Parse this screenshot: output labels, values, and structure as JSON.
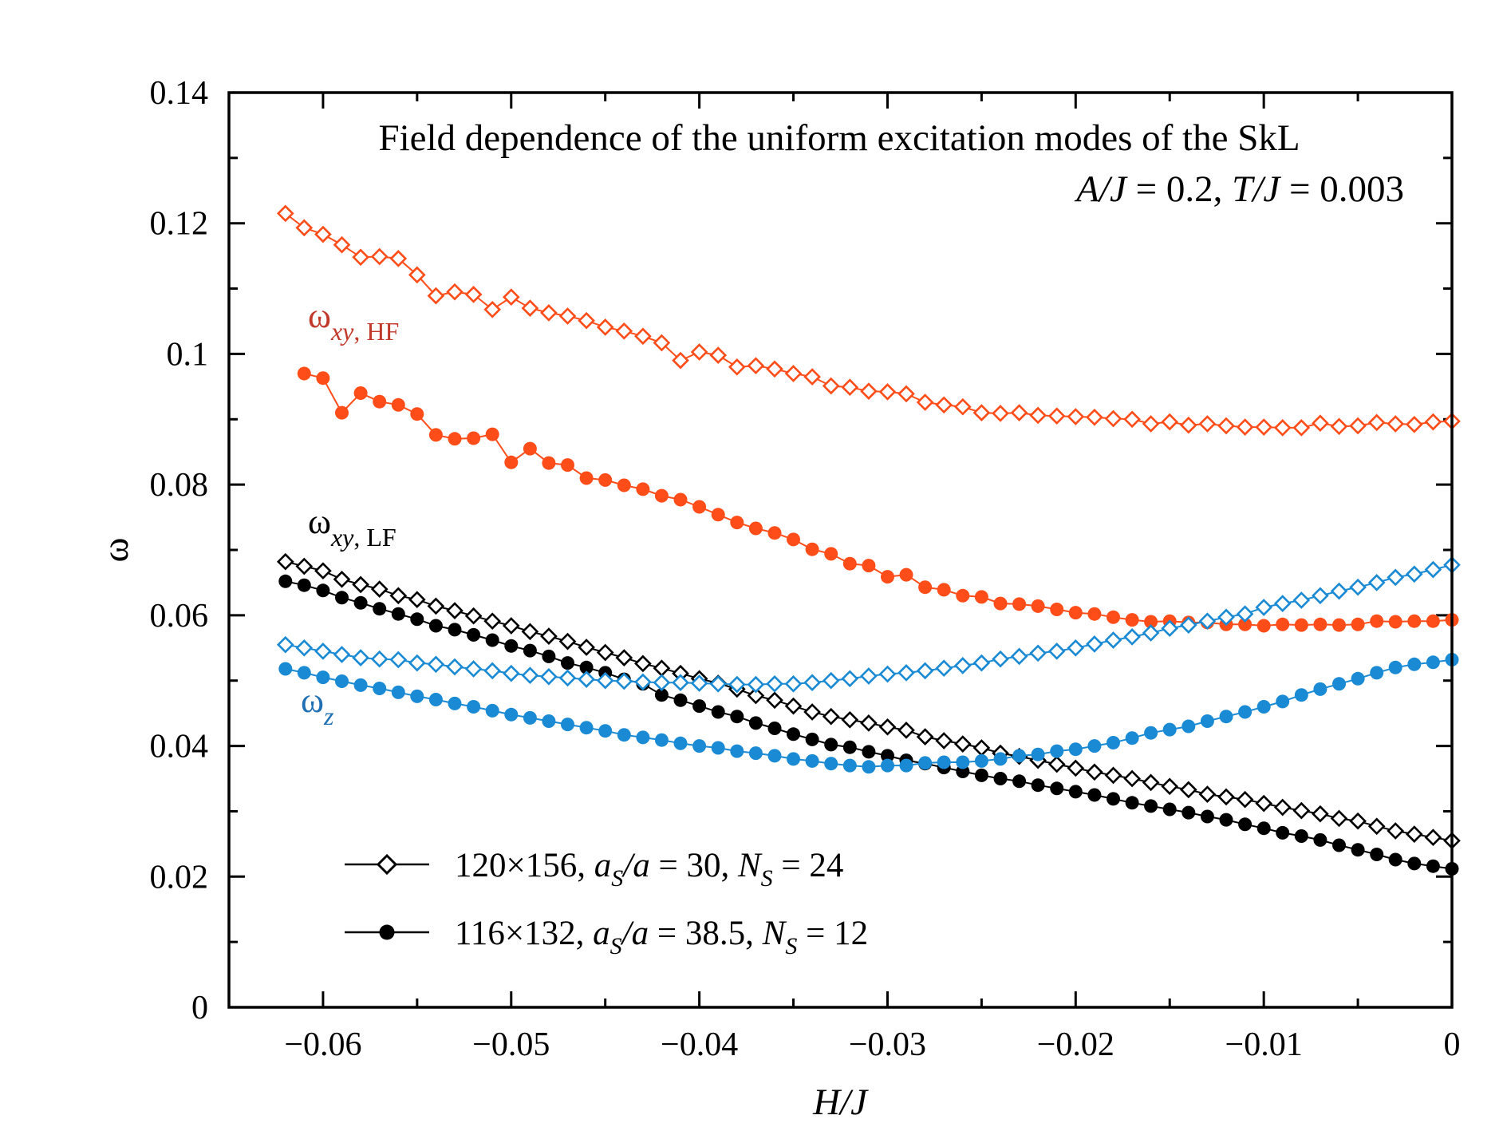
{
  "chart_data": {
    "type": "line",
    "title": "Field dependence of the uniform excitation modes of the SkL",
    "subtitle": {
      "a_var": "A/J",
      "a_val": " = 0.2, ",
      "t_var": "T/J",
      "t_val": "  = 0.003"
    },
    "xlabel": "H/J",
    "ylabel": "ω",
    "xlim": [
      -0.065,
      0
    ],
    "ylim": [
      0,
      0.14
    ],
    "x_ticks": [
      -0.06,
      -0.05,
      -0.04,
      -0.03,
      -0.02,
      -0.01,
      0
    ],
    "x_tick_labels": [
      "−0.06",
      "−0.05",
      "−0.04",
      "−0.03",
      "−0.02",
      "−0.01",
      "0"
    ],
    "y_ticks": [
      0,
      0.02,
      0.04,
      0.06,
      0.08,
      0.1,
      0.12,
      0.14
    ],
    "y_tick_labels": [
      "0",
      "0.02",
      "0.04",
      "0.06",
      "0.08",
      "0.1",
      "0.12",
      "0.14"
    ],
    "colors": {
      "hf": "#ff4d1a",
      "lf": "#000000",
      "z": "#1a8ad4",
      "label_hf": "#c0392b",
      "label_z": "#1f6fb5"
    },
    "series_labels": {
      "hf": {
        "main": "ω",
        "sub_italic": "xy",
        "sub_rest": ", HF"
      },
      "lf": {
        "main": "ω",
        "sub_italic": "xy",
        "sub_rest": ", LF"
      },
      "z": {
        "main": "ω",
        "sub_italic": "z",
        "sub_rest": ""
      }
    },
    "legend": [
      {
        "marker": "open-diamond",
        "text_a": "120×156, ",
        "a_s": "a",
        "a_s_sub": "S",
        "a_over": "/a",
        "text_b": "  = 30, ",
        "n": "N",
        "n_sub": "S",
        "text_c": " = 24"
      },
      {
        "marker": "filled-circle",
        "text_a": "116×132, ",
        "a_s": "a",
        "a_s_sub": "S",
        "a_over": "/a",
        "text_b": "  = 38.5, ",
        "n": "N",
        "n_sub": "S",
        "text_c": " = 12"
      }
    ],
    "series": [
      {
        "name": "ω_xy,HF open diamond (120×156)",
        "color_key": "hf",
        "marker": "open-diamond",
        "x": [
          -0.062,
          -0.061,
          -0.06,
          -0.059,
          -0.058,
          -0.057,
          -0.056,
          -0.055,
          -0.054,
          -0.053,
          -0.052,
          -0.051,
          -0.05,
          -0.049,
          -0.048,
          -0.047,
          -0.046,
          -0.045,
          -0.044,
          -0.043,
          -0.042,
          -0.041,
          -0.04,
          -0.039,
          -0.038,
          -0.037,
          -0.036,
          -0.035,
          -0.034,
          -0.033,
          -0.032,
          -0.031,
          -0.03,
          -0.029,
          -0.028,
          -0.027,
          -0.026,
          -0.025,
          -0.024,
          -0.023,
          -0.022,
          -0.021,
          -0.02,
          -0.019,
          -0.018,
          -0.017,
          -0.016,
          -0.015,
          -0.014,
          -0.013,
          -0.012,
          -0.011,
          -0.01,
          -0.009,
          -0.008,
          -0.007,
          -0.006,
          -0.005,
          -0.004,
          -0.003,
          -0.002,
          -0.001,
          0
        ],
        "y": [
          0.1215,
          0.1193,
          0.1183,
          0.1167,
          0.1148,
          0.1149,
          0.1146,
          0.1121,
          0.1089,
          0.1095,
          0.1091,
          0.1068,
          0.1087,
          0.107,
          0.1063,
          0.1058,
          0.1051,
          0.1041,
          0.1035,
          0.1027,
          0.1017,
          0.099,
          0.1003,
          0.0998,
          0.098,
          0.0982,
          0.0977,
          0.097,
          0.0965,
          0.0951,
          0.0949,
          0.0943,
          0.0942,
          0.0939,
          0.0926,
          0.0922,
          0.0919,
          0.091,
          0.0909,
          0.091,
          0.0906,
          0.0905,
          0.0904,
          0.0903,
          0.0901,
          0.09,
          0.0893,
          0.0896,
          0.0891,
          0.0893,
          0.089,
          0.0888,
          0.0888,
          0.0887,
          0.0887,
          0.0894,
          0.0889,
          0.089,
          0.0895,
          0.0893,
          0.0892,
          0.0896,
          0.0897
        ]
      },
      {
        "name": "ω_xy,HF filled circle (116×132)",
        "color_key": "hf",
        "marker": "filled-circle",
        "x": [
          -0.061,
          -0.06,
          -0.059,
          -0.058,
          -0.057,
          -0.056,
          -0.055,
          -0.054,
          -0.053,
          -0.052,
          -0.051,
          -0.05,
          -0.049,
          -0.048,
          -0.047,
          -0.046,
          -0.045,
          -0.044,
          -0.043,
          -0.042,
          -0.041,
          -0.04,
          -0.039,
          -0.038,
          -0.037,
          -0.036,
          -0.035,
          -0.034,
          -0.033,
          -0.032,
          -0.031,
          -0.03,
          -0.029,
          -0.028,
          -0.027,
          -0.026,
          -0.025,
          -0.024,
          -0.023,
          -0.022,
          -0.021,
          -0.02,
          -0.019,
          -0.018,
          -0.017,
          -0.016,
          -0.015,
          -0.014,
          -0.013,
          -0.012,
          -0.011,
          -0.01,
          -0.009,
          -0.008,
          -0.007,
          -0.006,
          -0.005,
          -0.004,
          -0.003,
          -0.002,
          -0.001,
          0
        ],
        "y": [
          0.097,
          0.0963,
          0.091,
          0.094,
          0.0927,
          0.0922,
          0.0908,
          0.0876,
          0.087,
          0.0871,
          0.0877,
          0.0834,
          0.0855,
          0.0833,
          0.083,
          0.081,
          0.0807,
          0.0799,
          0.0793,
          0.0783,
          0.0777,
          0.0766,
          0.0754,
          0.0742,
          0.0733,
          0.0726,
          0.0716,
          0.0701,
          0.0694,
          0.0679,
          0.0676,
          0.0659,
          0.0662,
          0.0643,
          0.0639,
          0.063,
          0.0628,
          0.0618,
          0.0617,
          0.0614,
          0.0609,
          0.0604,
          0.0602,
          0.0597,
          0.0593,
          0.059,
          0.0591,
          0.0589,
          0.0589,
          0.0586,
          0.0586,
          0.0584,
          0.0586,
          0.0585,
          0.0586,
          0.0585,
          0.0586,
          0.0591,
          0.059,
          0.0591,
          0.0591,
          0.0593
        ]
      },
      {
        "name": "ω_xy,LF open diamond (120×156)",
        "color_key": "lf",
        "marker": "open-diamond",
        "x": [
          -0.062,
          -0.061,
          -0.06,
          -0.059,
          -0.058,
          -0.057,
          -0.056,
          -0.055,
          -0.054,
          -0.053,
          -0.052,
          -0.051,
          -0.05,
          -0.049,
          -0.048,
          -0.047,
          -0.046,
          -0.045,
          -0.044,
          -0.043,
          -0.042,
          -0.041,
          -0.04,
          -0.039,
          -0.038,
          -0.037,
          -0.036,
          -0.035,
          -0.034,
          -0.033,
          -0.032,
          -0.031,
          -0.03,
          -0.029,
          -0.028,
          -0.027,
          -0.026,
          -0.025,
          -0.024,
          -0.023,
          -0.022,
          -0.021,
          -0.02,
          -0.019,
          -0.018,
          -0.017,
          -0.016,
          -0.015,
          -0.014,
          -0.013,
          -0.012,
          -0.011,
          -0.01,
          -0.009,
          -0.008,
          -0.007,
          -0.006,
          -0.005,
          -0.004,
          -0.003,
          -0.002,
          -0.001,
          0
        ],
        "y": [
          0.0682,
          0.0675,
          0.0668,
          0.0655,
          0.0647,
          0.064,
          0.063,
          0.0624,
          0.0614,
          0.0607,
          0.0599,
          0.0591,
          0.0584,
          0.0575,
          0.0568,
          0.056,
          0.0551,
          0.0543,
          0.0535,
          0.0526,
          0.0519,
          0.0511,
          0.0503,
          0.0496,
          0.0487,
          0.0477,
          0.047,
          0.0461,
          0.0452,
          0.0445,
          0.044,
          0.0435,
          0.0429,
          0.0424,
          0.0414,
          0.0408,
          0.0403,
          0.0397,
          0.0389,
          0.0384,
          0.0378,
          0.0372,
          0.0366,
          0.036,
          0.0355,
          0.035,
          0.0344,
          0.0338,
          0.0333,
          0.0326,
          0.0322,
          0.0318,
          0.0312,
          0.0306,
          0.0301,
          0.0296,
          0.0289,
          0.0285,
          0.0277,
          0.027,
          0.0265,
          0.026,
          0.0255
        ]
      },
      {
        "name": "ω_xy,LF filled circle (116×132)",
        "color_key": "lf",
        "marker": "filled-circle",
        "x": [
          -0.062,
          -0.061,
          -0.06,
          -0.059,
          -0.058,
          -0.057,
          -0.056,
          -0.055,
          -0.054,
          -0.053,
          -0.052,
          -0.051,
          -0.05,
          -0.049,
          -0.048,
          -0.047,
          -0.046,
          -0.045,
          -0.044,
          -0.043,
          -0.042,
          -0.041,
          -0.04,
          -0.039,
          -0.038,
          -0.037,
          -0.036,
          -0.035,
          -0.034,
          -0.033,
          -0.032,
          -0.031,
          -0.03,
          -0.029,
          -0.028,
          -0.027,
          -0.026,
          -0.025,
          -0.024,
          -0.023,
          -0.022,
          -0.021,
          -0.02,
          -0.019,
          -0.018,
          -0.017,
          -0.016,
          -0.015,
          -0.014,
          -0.013,
          -0.012,
          -0.011,
          -0.01,
          -0.009,
          -0.008,
          -0.007,
          -0.006,
          -0.005,
          -0.004,
          -0.003,
          -0.002,
          -0.001,
          0
        ],
        "y": [
          0.0652,
          0.0646,
          0.0638,
          0.0627,
          0.0619,
          0.061,
          0.0602,
          0.0594,
          0.0584,
          0.0578,
          0.057,
          0.0562,
          0.0553,
          0.0546,
          0.0537,
          0.0527,
          0.052,
          0.0512,
          0.0502,
          0.0495,
          0.0478,
          0.047,
          0.0461,
          0.0452,
          0.0445,
          0.0435,
          0.0427,
          0.0418,
          0.041,
          0.0402,
          0.0398,
          0.0391,
          0.0385,
          0.0378,
          0.0373,
          0.0367,
          0.0361,
          0.0355,
          0.035,
          0.0346,
          0.034,
          0.0335,
          0.033,
          0.0325,
          0.0319,
          0.0313,
          0.0308,
          0.0303,
          0.0298,
          0.0292,
          0.0287,
          0.028,
          0.0274,
          0.0267,
          0.0262,
          0.0256,
          0.0248,
          0.0241,
          0.0234,
          0.0226,
          0.022,
          0.0216,
          0.0212
        ]
      },
      {
        "name": "ω_z open diamond (120×156)",
        "color_key": "z",
        "marker": "open-diamond",
        "x": [
          -0.062,
          -0.061,
          -0.06,
          -0.059,
          -0.058,
          -0.057,
          -0.056,
          -0.055,
          -0.054,
          -0.053,
          -0.052,
          -0.051,
          -0.05,
          -0.049,
          -0.048,
          -0.047,
          -0.046,
          -0.045,
          -0.044,
          -0.043,
          -0.042,
          -0.041,
          -0.04,
          -0.039,
          -0.038,
          -0.037,
          -0.036,
          -0.035,
          -0.034,
          -0.033,
          -0.032,
          -0.031,
          -0.03,
          -0.029,
          -0.028,
          -0.027,
          -0.026,
          -0.025,
          -0.024,
          -0.023,
          -0.022,
          -0.021,
          -0.02,
          -0.019,
          -0.018,
          -0.017,
          -0.016,
          -0.015,
          -0.014,
          -0.013,
          -0.012,
          -0.011,
          -0.01,
          -0.009,
          -0.008,
          -0.007,
          -0.006,
          -0.005,
          -0.004,
          -0.003,
          -0.002,
          -0.001,
          0
        ],
        "y": [
          0.0555,
          0.055,
          0.0545,
          0.054,
          0.0535,
          0.0533,
          0.0532,
          0.0527,
          0.0525,
          0.0521,
          0.0518,
          0.0515,
          0.0511,
          0.0508,
          0.0506,
          0.0504,
          0.0502,
          0.05,
          0.0499,
          0.0498,
          0.0497,
          0.0497,
          0.0496,
          0.0495,
          0.0494,
          0.0494,
          0.0495,
          0.0495,
          0.0497,
          0.05,
          0.0503,
          0.0507,
          0.051,
          0.0512,
          0.0515,
          0.0519,
          0.0523,
          0.0527,
          0.0533,
          0.0537,
          0.0542,
          0.0545,
          0.055,
          0.0556,
          0.0562,
          0.0567,
          0.0573,
          0.058,
          0.0585,
          0.0591,
          0.0597,
          0.0602,
          0.0612,
          0.0618,
          0.0623,
          0.063,
          0.0637,
          0.0643,
          0.065,
          0.0658,
          0.0663,
          0.067,
          0.0677
        ]
      },
      {
        "name": "ω_z filled circle (116×132)",
        "color_key": "z",
        "marker": "filled-circle",
        "x": [
          -0.062,
          -0.061,
          -0.06,
          -0.059,
          -0.058,
          -0.057,
          -0.056,
          -0.055,
          -0.054,
          -0.053,
          -0.052,
          -0.051,
          -0.05,
          -0.049,
          -0.048,
          -0.047,
          -0.046,
          -0.045,
          -0.044,
          -0.043,
          -0.042,
          -0.041,
          -0.04,
          -0.039,
          -0.038,
          -0.037,
          -0.036,
          -0.035,
          -0.034,
          -0.033,
          -0.032,
          -0.031,
          -0.03,
          -0.029,
          -0.028,
          -0.027,
          -0.026,
          -0.025,
          -0.024,
          -0.023,
          -0.022,
          -0.021,
          -0.02,
          -0.019,
          -0.018,
          -0.017,
          -0.016,
          -0.015,
          -0.014,
          -0.013,
          -0.012,
          -0.011,
          -0.01,
          -0.009,
          -0.008,
          -0.007,
          -0.006,
          -0.005,
          -0.004,
          -0.003,
          -0.002,
          -0.001,
          0
        ],
        "y": [
          0.0518,
          0.0512,
          0.0505,
          0.0499,
          0.0493,
          0.0488,
          0.0482,
          0.0476,
          0.0471,
          0.0465,
          0.046,
          0.0454,
          0.0448,
          0.0443,
          0.0438,
          0.0433,
          0.0428,
          0.0423,
          0.0417,
          0.0413,
          0.0409,
          0.0404,
          0.04,
          0.0397,
          0.0392,
          0.0389,
          0.0385,
          0.038,
          0.0377,
          0.0373,
          0.037,
          0.0368,
          0.037,
          0.037,
          0.0374,
          0.0375,
          0.0375,
          0.0377,
          0.038,
          0.0385,
          0.0387,
          0.0392,
          0.0395,
          0.04,
          0.0405,
          0.0412,
          0.042,
          0.0425,
          0.043,
          0.0438,
          0.0445,
          0.0452,
          0.046,
          0.0468,
          0.0478,
          0.0487,
          0.0495,
          0.0503,
          0.0512,
          0.052,
          0.0525,
          0.0528,
          0.0532
        ]
      }
    ]
  }
}
